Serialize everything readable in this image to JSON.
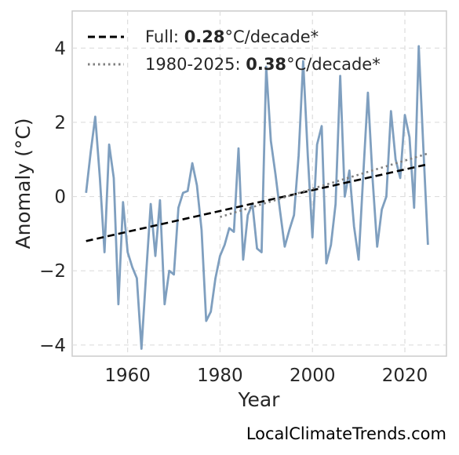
{
  "chart_data": {
    "type": "line",
    "xlabel": "Year",
    "ylabel": "Anomaly (°C)",
    "xlim": [
      1948,
      2029
    ],
    "ylim": [
      -4.3,
      5.0
    ],
    "xticks": [
      1960,
      1980,
      2000,
      2020
    ],
    "yticks": [
      -4,
      -2,
      0,
      2,
      4
    ],
    "ytick_labels": [
      "−4",
      "−2",
      "0",
      "2",
      "4"
    ],
    "grid": true,
    "legend_position": "top-left",
    "series": [
      {
        "kind": "observed",
        "color": "#7f9fbf",
        "x": [
          1951,
          1952,
          1953,
          1954,
          1955,
          1956,
          1957,
          1958,
          1959,
          1960,
          1961,
          1962,
          1963,
          1964,
          1965,
          1966,
          1967,
          1968,
          1969,
          1970,
          1971,
          1972,
          1973,
          1974,
          1975,
          1976,
          1977,
          1978,
          1979,
          1980,
          1981,
          1982,
          1983,
          1984,
          1985,
          1986,
          1987,
          1988,
          1989,
          1990,
          1991,
          1992,
          1993,
          1994,
          1995,
          1996,
          1997,
          1998,
          1999,
          2000,
          2001,
          2002,
          2003,
          2004,
          2005,
          2006,
          2007,
          2008,
          2009,
          2010,
          2011,
          2012,
          2013,
          2014,
          2015,
          2016,
          2017,
          2018,
          2019,
          2020,
          2021,
          2022,
          2023,
          2024,
          2025
        ],
        "y": [
          0.1,
          1.2,
          2.15,
          0.5,
          -1.5,
          1.4,
          0.5,
          -2.9,
          -0.15,
          -1.5,
          -1.9,
          -2.2,
          -4.1,
          -2.1,
          -0.2,
          -1.6,
          -0.1,
          -2.9,
          -2.0,
          -2.1,
          -0.3,
          0.1,
          0.15,
          0.9,
          0.3,
          -0.9,
          -3.35,
          -3.1,
          -2.2,
          -1.6,
          -1.3,
          -0.85,
          -0.95,
          1.3,
          -1.7,
          -0.5,
          -0.2,
          -1.4,
          -1.5,
          3.5,
          1.5,
          0.6,
          -0.4,
          -1.35,
          -0.9,
          -0.5,
          1.1,
          3.65,
          1.1,
          -1.1,
          1.4,
          1.9,
          -1.8,
          -1.3,
          -0.2,
          3.25,
          0.0,
          0.7,
          -0.8,
          -1.7,
          0.6,
          2.8,
          0.5,
          -1.35,
          -0.35,
          0.0,
          2.3,
          1.0,
          0.5,
          2.2,
          1.6,
          -0.3,
          4.05,
          1.3,
          -1.3
        ]
      },
      {
        "kind": "trend",
        "name": "Full",
        "rate": "0.28",
        "unit": "°C/decade*",
        "color": "#000000",
        "dash": "dashed",
        "x": [
          1951,
          2025
        ],
        "y": [
          -1.2,
          0.87
        ]
      },
      {
        "kind": "trend",
        "name": "1980-2025",
        "rate": "0.38",
        "unit": "°C/decade*",
        "color": "#808080",
        "dash": "dotted",
        "x": [
          1980,
          2025
        ],
        "y": [
          -0.55,
          1.16
        ]
      }
    ]
  },
  "footer": {
    "source_text": "LocalClimateTrends.com"
  }
}
